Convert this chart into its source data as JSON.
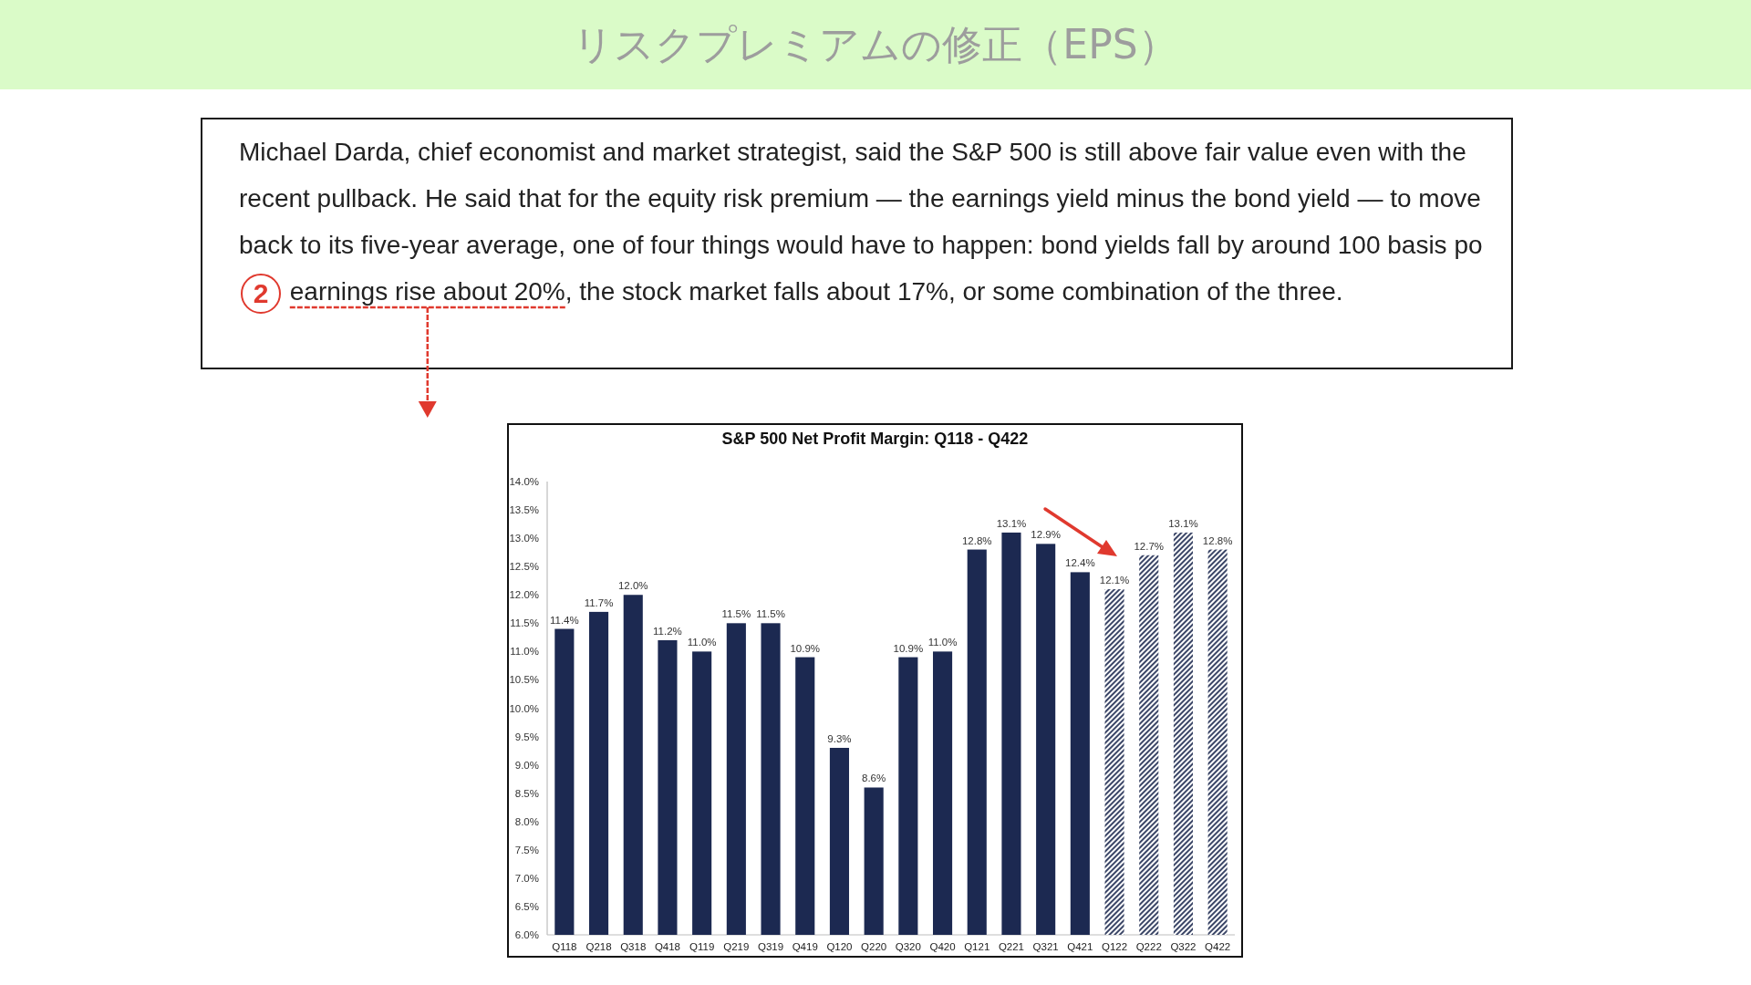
{
  "chart_data": {
    "type": "bar",
    "title": "リスクプレミアムの修正（EPS）",
    "subtitle": "S&P 500 Net Profit Margin: Q118 - Q422",
    "categories": [
      "Q118",
      "Q218",
      "Q318",
      "Q418",
      "Q119",
      "Q219",
      "Q319",
      "Q419",
      "Q120",
      "Q220",
      "Q320",
      "Q420",
      "Q121",
      "Q221",
      "Q321",
      "Q421",
      "Q122",
      "Q222",
      "Q322",
      "Q422"
    ],
    "series": [
      {
        "color": "#1c2951",
        "values": [
          11.4,
          11.7,
          12.0,
          11.2,
          11.0,
          11.5,
          11.5,
          10.9,
          9.3,
          8.6,
          10.9,
          11.0,
          12.8,
          13.1,
          12.9,
          12.4,
          null,
          null,
          null,
          null
        ],
        "value_labels": [
          "11.4%",
          "11.7%",
          "12.0%",
          "11.2%",
          "11.0%",
          "11.5%",
          "11.5%",
          "10.9%",
          "9.3%",
          "8.6%",
          "10.9%",
          "11.0%",
          "12.8%",
          "13.1%",
          "12.9%",
          "12.4%",
          null,
          null,
          null,
          null
        ]
      },
      {
        "color": "#3b4667",
        "values": [
          null,
          null,
          null,
          null,
          null,
          null,
          null,
          null,
          null,
          null,
          null,
          null,
          null,
          null,
          null,
          null,
          12.1,
          12.7,
          13.1,
          12.8
        ],
        "value_labels": [
          null,
          null,
          null,
          null,
          null,
          null,
          null,
          null,
          null,
          null,
          null,
          null,
          null,
          null,
          null,
          null,
          "12.1%",
          "12.7%",
          "13.1%",
          "12.8%"
        ]
      }
    ],
    "ylim": [
      6,
      14
    ],
    "yticks": [
      {
        "value": 6,
        "label": "6.0%"
      },
      {
        "value": 6.5,
        "label": "6.5%"
      },
      {
        "value": 7,
        "label": "7.0%"
      },
      {
        "value": 7.5,
        "label": "7.5%"
      },
      {
        "value": 8,
        "label": "8.0%"
      },
      {
        "value": 8.5,
        "label": "8.5%"
      },
      {
        "value": 9,
        "label": "9.0%"
      },
      {
        "value": 9.5,
        "label": "9.5%"
      },
      {
        "value": 10,
        "label": "10.0%"
      },
      {
        "value": 10.5,
        "label": "10.5%"
      },
      {
        "value": 11,
        "label": "11.0%"
      },
      {
        "value": 11.5,
        "label": "11.5%"
      },
      {
        "value": 12,
        "label": "12.0%"
      },
      {
        "value": 12.5,
        "label": "12.5%"
      },
      {
        "value": 13,
        "label": "13.0%"
      },
      {
        "value": 13.5,
        "label": "13.5%"
      },
      {
        "value": 14,
        "label": "14.0%"
      }
    ],
    "annotations": [
      "Michael Darda, chief economist and market strategist, said the S&P 500 is still above fair value even with the recent pullback. He said that for the equity risk premium — the earnings yield minus the bond yield — to move back to its five-year average, one of four things would have to happen: bond yields fall by around 100 basis po",
      "2",
      "earnings rise about 20%",
      ", the stock market falls about 17%, or some combination of the three."
    ]
  }
}
